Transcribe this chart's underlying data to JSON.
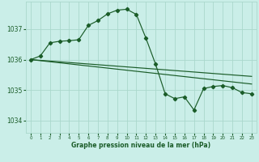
{
  "title": "Graphe pression niveau de la mer (hPa)",
  "background_color": "#caeee8",
  "grid_color": "#aad8cc",
  "line_color": "#1a5c28",
  "x_ticks": [
    0,
    1,
    2,
    3,
    4,
    5,
    6,
    7,
    8,
    9,
    10,
    11,
    12,
    13,
    14,
    15,
    16,
    17,
    18,
    19,
    20,
    21,
    22,
    23
  ],
  "y_ticks": [
    1034,
    1035,
    1036,
    1037
  ],
  "ylim": [
    1033.6,
    1037.9
  ],
  "xlim": [
    -0.5,
    23.5
  ],
  "trend1_x": [
    0,
    23
  ],
  "trend1_y": [
    1036.0,
    1035.45
  ],
  "trend2_x": [
    0,
    23
  ],
  "trend2_y": [
    1036.0,
    1035.2
  ],
  "main_x": [
    0,
    1,
    2,
    3,
    4,
    5,
    6,
    7,
    8,
    9,
    10,
    11,
    12,
    13,
    14,
    15,
    16,
    17,
    18,
    19,
    20,
    21,
    22,
    23
  ],
  "main_y": [
    1036.0,
    1036.12,
    1036.55,
    1036.6,
    1036.62,
    1036.65,
    1037.12,
    1037.28,
    1037.5,
    1037.62,
    1037.65,
    1037.48,
    1036.7,
    1035.85,
    1034.88,
    1034.72,
    1034.78,
    1034.35,
    1035.05,
    1035.12,
    1035.15,
    1035.08,
    1034.92,
    1034.88
  ]
}
